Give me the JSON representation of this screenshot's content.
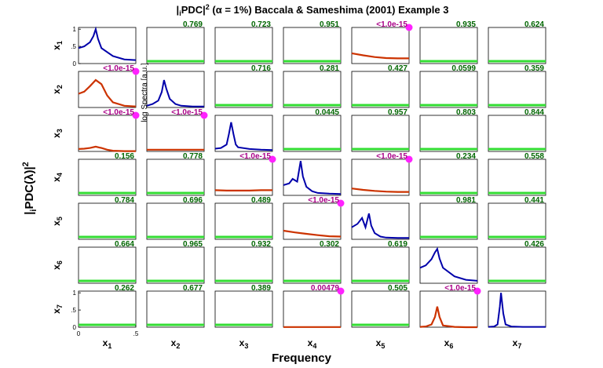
{
  "chart_data": {
    "type": "line",
    "title": "|iPDC|² (α = 1%) Baccala & Sameshima (2001) Example 3",
    "title_parts": {
      "pre": "|",
      "sub": "i",
      "mid": "PDC|",
      "sup": "2",
      "rest": " (α = 1%) Baccala & Sameshima (2001) Example 3"
    },
    "xlabel": "Frequency",
    "ylabel": {
      "pre": "|",
      "sub": "i",
      "mid": "PDC(λ)|",
      "sup": "2"
    },
    "spectra_ylabel": "log Spectra [a.u.]",
    "channels": [
      "x1",
      "x2",
      "x3",
      "x4",
      "x5",
      "x6",
      "x7"
    ],
    "channel_labels": [
      {
        "base": "x",
        "sub": "1"
      },
      {
        "base": "x",
        "sub": "2"
      },
      {
        "base": "x",
        "sub": "3"
      },
      {
        "base": "x",
        "sub": "4"
      },
      {
        "base": "x",
        "sub": "5"
      },
      {
        "base": "x",
        "sub": "6"
      },
      {
        "base": "x",
        "sub": "7"
      }
    ],
    "xlim": [
      0,
      0.5
    ],
    "ylim": [
      0,
      1.05
    ],
    "x_ticks": [
      "0",
      ".5"
    ],
    "y_ticks": [
      "0",
      ".5",
      "1"
    ],
    "grid": false,
    "pvalues": [
      [
        null,
        "0.769",
        "0.723",
        "0.951",
        "<1.0e-15",
        "0.935",
        "0.624"
      ],
      [
        "<1.0e-15",
        null,
        "0.716",
        "0.281",
        "0.427",
        "0.0599",
        "0.359"
      ],
      [
        "<1.0e-15",
        "<1.0e-15",
        null,
        "0.0445",
        "0.957",
        "0.803",
        "0.844"
      ],
      [
        "0.156",
        "0.778",
        "<1.0e-15",
        null,
        "<1.0e-15",
        "0.234",
        "0.558"
      ],
      [
        "0.784",
        "0.696",
        "0.489",
        "<1.0e-15",
        null,
        "0.981",
        "0.441"
      ],
      [
        "0.664",
        "0.965",
        "0.932",
        "0.302",
        "0.619",
        null,
        "0.426"
      ],
      [
        "0.262",
        "0.677",
        "0.389",
        "0.00479",
        "0.505",
        "<1.0e-15",
        null
      ]
    ],
    "significant": [
      [
        0,
        4
      ],
      [
        1,
        0
      ],
      [
        2,
        0
      ],
      [
        2,
        1
      ],
      [
        3,
        2
      ],
      [
        3,
        4
      ],
      [
        4,
        3
      ],
      [
        6,
        3
      ],
      [
        6,
        5
      ]
    ],
    "significant_pdc_curves": [
      {
        "row": 1,
        "col": 5,
        "x": [
          0,
          0.1,
          0.2,
          0.3,
          0.4,
          0.5
        ],
        "y": [
          0.3,
          0.24,
          0.19,
          0.16,
          0.15,
          0.15
        ]
      },
      {
        "row": 2,
        "col": 1,
        "x": [
          0,
          0.05,
          0.1,
          0.15,
          0.2,
          0.25,
          0.3,
          0.4,
          0.5
        ],
        "y": [
          0.4,
          0.46,
          0.62,
          0.8,
          0.68,
          0.35,
          0.15,
          0.05,
          0.03
        ]
      },
      {
        "row": 3,
        "col": 1,
        "x": [
          0,
          0.05,
          0.1,
          0.15,
          0.2,
          0.25,
          0.3,
          0.4,
          0.5
        ],
        "y": [
          0.07,
          0.08,
          0.1,
          0.14,
          0.1,
          0.05,
          0.02,
          0.01,
          0.01
        ]
      },
      {
        "row": 3,
        "col": 2,
        "x": [
          0,
          0.1,
          0.2,
          0.3,
          0.4,
          0.5
        ],
        "y": [
          0.05,
          0.05,
          0.05,
          0.05,
          0.05,
          0.05
        ]
      },
      {
        "row": 4,
        "col": 3,
        "x": [
          0,
          0.1,
          0.2,
          0.3,
          0.4,
          0.5
        ],
        "y": [
          0.15,
          0.14,
          0.14,
          0.14,
          0.15,
          0.15
        ]
      },
      {
        "row": 4,
        "col": 5,
        "x": [
          0,
          0.1,
          0.2,
          0.3,
          0.4,
          0.5
        ],
        "y": [
          0.2,
          0.16,
          0.13,
          0.11,
          0.1,
          0.1
        ]
      },
      {
        "row": 5,
        "col": 4,
        "x": [
          0,
          0.1,
          0.2,
          0.3,
          0.4,
          0.5
        ],
        "y": [
          0.25,
          0.2,
          0.16,
          0.12,
          0.09,
          0.08
        ]
      },
      {
        "row": 7,
        "col": 4,
        "x": [
          0,
          0.1,
          0.2,
          0.3,
          0.4,
          0.5
        ],
        "y": [
          0.005,
          0.005,
          0.005,
          0.005,
          0.005,
          0.005
        ]
      },
      {
        "row": 7,
        "col": 6,
        "x": [
          0,
          0.05,
          0.1,
          0.13,
          0.15,
          0.17,
          0.2,
          0.3,
          0.4,
          0.5
        ],
        "y": [
          0.01,
          0.02,
          0.08,
          0.3,
          0.6,
          0.3,
          0.05,
          0.01,
          0.0,
          0.0
        ]
      }
    ],
    "spectra_curves": [
      {
        "channel": 1,
        "x": [
          0,
          0.05,
          0.1,
          0.13,
          0.15,
          0.17,
          0.2,
          0.3,
          0.4,
          0.5
        ],
        "y": [
          0.45,
          0.5,
          0.62,
          0.8,
          1.0,
          0.72,
          0.45,
          0.22,
          0.12,
          0.1
        ]
      },
      {
        "channel": 2,
        "x": [
          0,
          0.05,
          0.1,
          0.13,
          0.15,
          0.17,
          0.2,
          0.25,
          0.3,
          0.4,
          0.5
        ],
        "y": [
          0.05,
          0.1,
          0.2,
          0.45,
          0.8,
          0.55,
          0.25,
          0.1,
          0.05,
          0.03,
          0.03
        ]
      },
      {
        "channel": 3,
        "x": [
          0,
          0.05,
          0.1,
          0.12,
          0.14,
          0.16,
          0.18,
          0.2,
          0.3,
          0.4,
          0.5
        ],
        "y": [
          0.08,
          0.1,
          0.2,
          0.5,
          0.85,
          0.5,
          0.2,
          0.12,
          0.07,
          0.05,
          0.04
        ]
      },
      {
        "channel": 4,
        "x": [
          0,
          0.05,
          0.08,
          0.12,
          0.15,
          0.17,
          0.2,
          0.25,
          0.3,
          0.4,
          0.5
        ],
        "y": [
          0.3,
          0.35,
          0.48,
          0.4,
          1.0,
          0.55,
          0.25,
          0.12,
          0.07,
          0.05,
          0.04
        ]
      },
      {
        "channel": 5,
        "x": [
          0,
          0.05,
          0.09,
          0.12,
          0.15,
          0.17,
          0.2,
          0.25,
          0.3,
          0.4,
          0.5
        ],
        "y": [
          0.35,
          0.45,
          0.62,
          0.35,
          0.75,
          0.4,
          0.18,
          0.08,
          0.05,
          0.04,
          0.04
        ]
      },
      {
        "channel": 6,
        "x": [
          0,
          0.05,
          0.1,
          0.13,
          0.15,
          0.17,
          0.2,
          0.3,
          0.4,
          0.5
        ],
        "y": [
          0.45,
          0.52,
          0.7,
          0.9,
          1.0,
          0.72,
          0.45,
          0.2,
          0.1,
          0.07
        ]
      },
      {
        "channel": 7,
        "x": [
          0,
          0.05,
          0.08,
          0.1,
          0.11,
          0.13,
          0.15,
          0.2,
          0.3,
          0.4,
          0.5
        ],
        "y": [
          0.01,
          0.02,
          0.08,
          0.6,
          1.0,
          0.4,
          0.08,
          0.02,
          0.01,
          0.01,
          0.01
        ]
      }
    ],
    "colors": {
      "spectra": "#0000aa",
      "significant_pdc": "#cc3300",
      "nonsignificant_pdc": "#33dd33",
      "pvalue_nonsig": "#006600",
      "pvalue_sig": "#aa0088",
      "sig_marker": "#ff22ff"
    }
  }
}
